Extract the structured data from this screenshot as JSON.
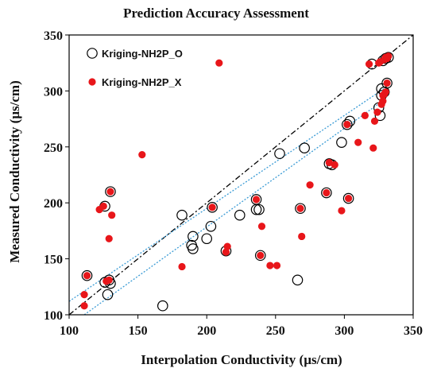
{
  "chart_data": {
    "type": "scatter",
    "title": "Prediction Accuracy Assessment",
    "xlabel": "Interpolation Conductivity (µs/cm)",
    "ylabel": "Measured Conductivity (µs/cm)",
    "xlim": [
      100,
      350
    ],
    "ylim": [
      100,
      350
    ],
    "xticks": [
      "100",
      "150",
      "200",
      "250",
      "300",
      "350"
    ],
    "yticks": [
      "100",
      "150",
      "200",
      "250",
      "300",
      "350"
    ],
    "grid": false,
    "legend_position": "top-left",
    "reference_line": {
      "style": "dash-dot",
      "color": "#000000",
      "points": [
        [
          100,
          100
        ],
        [
          350,
          350
        ]
      ]
    },
    "series": [
      {
        "name": "Kriging-NH2P_O",
        "marker": "hollow-circle",
        "color": "#000000",
        "trendline": {
          "style": "dotted",
          "color": "#3a9bd5",
          "points": [
            [
              111,
              100
            ],
            [
              330,
              293
            ]
          ]
        },
        "points": [
          [
            113,
            135
          ],
          [
            126,
            129
          ],
          [
            128,
            118
          ],
          [
            129,
            131
          ],
          [
            130,
            128
          ],
          [
            130,
            210
          ],
          [
            126,
            197
          ],
          [
            168,
            108
          ],
          [
            182,
            189
          ],
          [
            189,
            162
          ],
          [
            190,
            170
          ],
          [
            190,
            159
          ],
          [
            200,
            168
          ],
          [
            203,
            179
          ],
          [
            204,
            196
          ],
          [
            214,
            157
          ],
          [
            224,
            189
          ],
          [
            236,
            194
          ],
          [
            238,
            194
          ],
          [
            239,
            153
          ],
          [
            236,
            203
          ],
          [
            253,
            244
          ],
          [
            266,
            131
          ],
          [
            268,
            195
          ],
          [
            271,
            249
          ],
          [
            287,
            209
          ],
          [
            289,
            235
          ],
          [
            291,
            234
          ],
          [
            298,
            254
          ],
          [
            302,
            270
          ],
          [
            304,
            273
          ],
          [
            303,
            204
          ],
          [
            325,
            285
          ],
          [
            326,
            278
          ],
          [
            327,
            296
          ],
          [
            327,
            302
          ],
          [
            328,
            327
          ],
          [
            330,
            329
          ],
          [
            332,
            330
          ],
          [
            331,
            307
          ],
          [
            329,
            299
          ],
          [
            320,
            324
          ]
        ]
      },
      {
        "name": "Kriging-NH2P_X",
        "marker": "filled-circle",
        "color": "#e8161a",
        "trendline": {
          "style": "dotted",
          "color": "#3a9bd5",
          "points": [
            [
              100,
              112
            ],
            [
              330,
              303
            ]
          ]
        },
        "points": [
          [
            111,
            118
          ],
          [
            111,
            108
          ],
          [
            113,
            135
          ],
          [
            122,
            194
          ],
          [
            125,
            197
          ],
          [
            127,
            130
          ],
          [
            129,
            131
          ],
          [
            129,
            168
          ],
          [
            130,
            210
          ],
          [
            131,
            189
          ],
          [
            153,
            243
          ],
          [
            182,
            143
          ],
          [
            204,
            196
          ],
          [
            209,
            325
          ],
          [
            214,
            156
          ],
          [
            215,
            161
          ],
          [
            236,
            203
          ],
          [
            239,
            153
          ],
          [
            240,
            179
          ],
          [
            246,
            144
          ],
          [
            251,
            144
          ],
          [
            268,
            195
          ],
          [
            269,
            170
          ],
          [
            275,
            216
          ],
          [
            287,
            209
          ],
          [
            289,
            236
          ],
          [
            293,
            234
          ],
          [
            298,
            193
          ],
          [
            302,
            270
          ],
          [
            303,
            204
          ],
          [
            310,
            254
          ],
          [
            315,
            278
          ],
          [
            318,
            324
          ],
          [
            321,
            249
          ],
          [
            322,
            273
          ],
          [
            324,
            281
          ],
          [
            325,
            325
          ],
          [
            327,
            288
          ],
          [
            328,
            296
          ],
          [
            329,
            297
          ],
          [
            330,
            299
          ],
          [
            331,
            307
          ],
          [
            326,
            326
          ],
          [
            329,
            328
          ],
          [
            331,
            329
          ],
          [
            332,
            331
          ],
          [
            328,
            291
          ],
          [
            330,
            330
          ]
        ]
      }
    ]
  }
}
